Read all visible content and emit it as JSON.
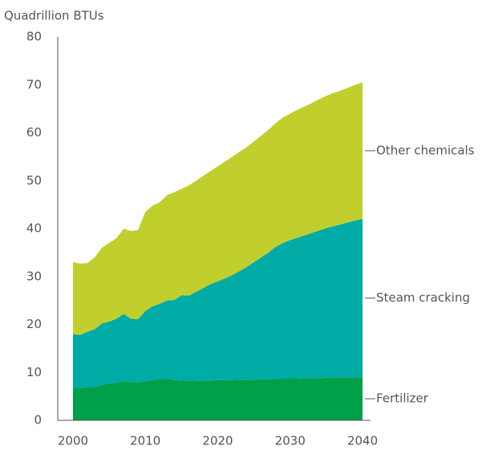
{
  "chart_data": {
    "type": "stacked_area",
    "y_label": "Quadrillion BTUs",
    "x": [
      2000,
      2001,
      2002,
      2003,
      2004,
      2005,
      2006,
      2007,
      2008,
      2009,
      2010,
      2011,
      2012,
      2013,
      2014,
      2015,
      2016,
      2017,
      2018,
      2019,
      2020,
      2021,
      2022,
      2023,
      2024,
      2025,
      2026,
      2027,
      2028,
      2029,
      2030,
      2031,
      2032,
      2033,
      2034,
      2035,
      2036,
      2037,
      2038,
      2039,
      2040
    ],
    "series": [
      {
        "name": "Fertilizer",
        "color": "#00a04b",
        "values": [
          6.8,
          6.8,
          6.9,
          7.0,
          7.4,
          7.7,
          7.8,
          8.1,
          8.0,
          7.9,
          8.2,
          8.4,
          8.6,
          8.7,
          8.4,
          8.3,
          8.2,
          8.2,
          8.3,
          8.3,
          8.4,
          8.4,
          8.4,
          8.5,
          8.5,
          8.5,
          8.6,
          8.6,
          8.6,
          8.7,
          8.7,
          8.7,
          8.8,
          8.8,
          8.8,
          8.9,
          8.9,
          8.9,
          8.9,
          9.0,
          9.0
        ]
      },
      {
        "name": "Steam cracking",
        "color": "#00aaa5",
        "values": [
          11.2,
          11.0,
          11.6,
          12.0,
          12.8,
          12.9,
          13.4,
          14.1,
          13.2,
          13.2,
          14.6,
          15.4,
          15.7,
          16.3,
          16.7,
          17.8,
          17.8,
          18.6,
          19.3,
          20.1,
          20.6,
          21.2,
          21.9,
          22.6,
          23.5,
          24.5,
          25.4,
          26.4,
          27.6,
          28.3,
          28.9,
          29.4,
          29.8,
          30.3,
          30.8,
          31.2,
          31.6,
          32.0,
          32.4,
          32.7,
          33.0
        ]
      },
      {
        "name": "Other chemicals",
        "color": "#c0cf2e",
        "values": [
          15.0,
          14.9,
          14.3,
          15.0,
          15.8,
          16.4,
          16.8,
          17.8,
          18.3,
          18.6,
          20.7,
          21.0,
          21.2,
          22.0,
          22.5,
          22.2,
          23.0,
          23.2,
          23.4,
          23.6,
          24.0,
          24.4,
          24.7,
          24.9,
          25.0,
          25.2,
          25.4,
          25.6,
          25.8,
          26.2,
          26.4,
          26.7,
          26.9,
          27.1,
          27.4,
          27.6,
          27.8,
          27.9,
          28.1,
          28.3,
          28.5
        ]
      }
    ],
    "xlim": [
      1997.9,
      2041.1
    ],
    "xticks": [
      2000,
      2010,
      2020,
      2030,
      2040
    ],
    "ylim": [
      0,
      80
    ],
    "yticks": [
      0,
      10,
      20,
      30,
      40,
      50,
      60,
      70,
      80
    ],
    "legend": "right"
  }
}
